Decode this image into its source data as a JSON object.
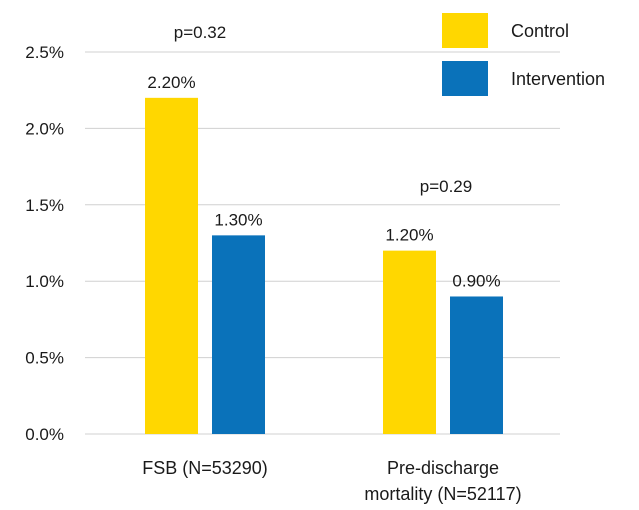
{
  "chart_data": {
    "type": "bar",
    "categories": [
      "FSB (N=53290)",
      "Pre-discharge mortality (N=52117)"
    ],
    "category_lines": [
      [
        "FSB (N=53290)"
      ],
      [
        "Pre-discharge",
        "mortality (N=52117)"
      ]
    ],
    "series": [
      {
        "name": "Control",
        "color": "#FFD700",
        "values": [
          2.2,
          1.2
        ],
        "labels": [
          "2.20%",
          "1.20%"
        ]
      },
      {
        "name": "Intervention",
        "color": "#0A72BA",
        "values": [
          1.3,
          0.9
        ],
        "labels": [
          "1.30%",
          "0.90%"
        ]
      }
    ],
    "annotations": [
      "p=0.32",
      "p=0.29"
    ],
    "ylim": [
      0,
      2.5
    ],
    "yticks": [
      0,
      0.5,
      1.0,
      1.5,
      2.0,
      2.5
    ],
    "ytick_labels": [
      "0.0%",
      "0.5%",
      "1.0%",
      "1.5%",
      "2.0%",
      "2.5%"
    ],
    "grid": true,
    "legend_position": "top-right",
    "title": "",
    "xlabel": "",
    "ylabel": ""
  }
}
